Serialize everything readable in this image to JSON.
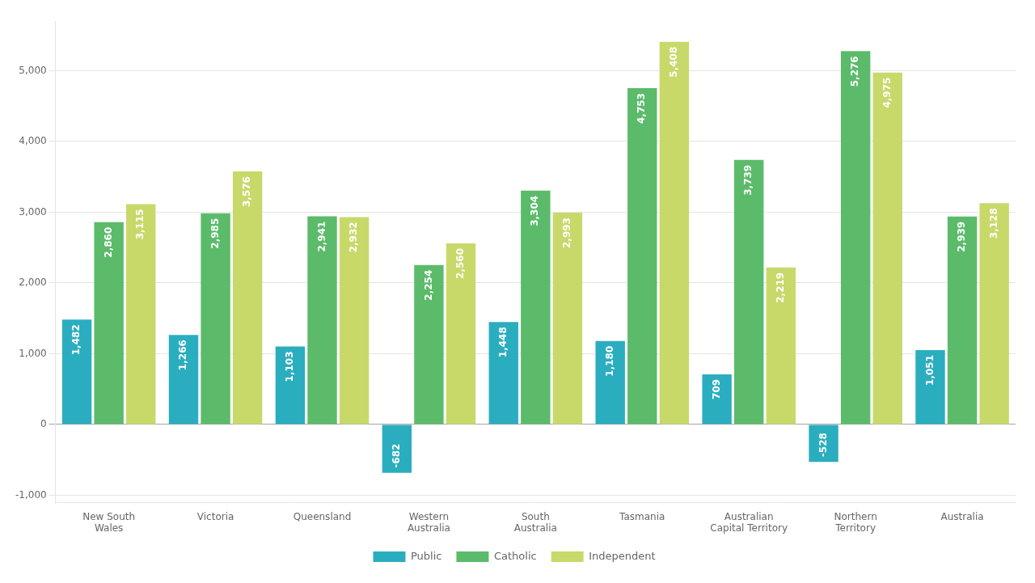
{
  "chart_data": {
    "type": "bar",
    "categories": [
      "New South\nWales",
      "Victoria",
      "Queensland",
      "Western\nAustralia",
      "South\nAustralia",
      "Tasmania",
      "Australian\nCapital Territory",
      "Northern\nTerritory",
      "Australia"
    ],
    "series": [
      {
        "name": "Public",
        "color": "#2BADC0",
        "values": [
          1482,
          1266,
          1103,
          -682,
          1448,
          1180,
          709,
          -528,
          1051
        ],
        "value_labels": [
          "1,482",
          "1,266",
          "1,103",
          "-682",
          "1,448",
          "1,180",
          "709",
          "-528",
          "1,051"
        ]
      },
      {
        "name": "Catholic",
        "color": "#5BBB6A",
        "values": [
          2860,
          2985,
          2941,
          2254,
          3304,
          4753,
          3739,
          5276,
          2939
        ],
        "value_labels": [
          "2,860",
          "2,985",
          "2,941",
          "2,254",
          "3,304",
          "4,753",
          "3,739",
          "5,276",
          "2,939"
        ]
      },
      {
        "name": "Independent",
        "color": "#C8D96A",
        "values": [
          3115,
          3576,
          2932,
          2560,
          2993,
          5408,
          2219,
          4975,
          3128
        ],
        "value_labels": [
          "3,115",
          "3,576",
          "2,932",
          "2,560",
          "2,993",
          "5,408",
          "2,219",
          "4,975",
          "3,128"
        ]
      }
    ],
    "ylim": [
      -1100,
      5700
    ],
    "yticks": [
      {
        "value": -1000,
        "label": "-1,000"
      },
      0,
      {
        "value": 1000,
        "label": "1,000"
      },
      {
        "value": 2000,
        "label": "2,000"
      },
      {
        "value": 3000,
        "label": "3,000"
      },
      {
        "value": 4000,
        "label": "4,000"
      },
      {
        "value": 5000,
        "label": "5,000"
      }
    ],
    "grid": true,
    "legend": "bottom",
    "data_labels": true
  }
}
